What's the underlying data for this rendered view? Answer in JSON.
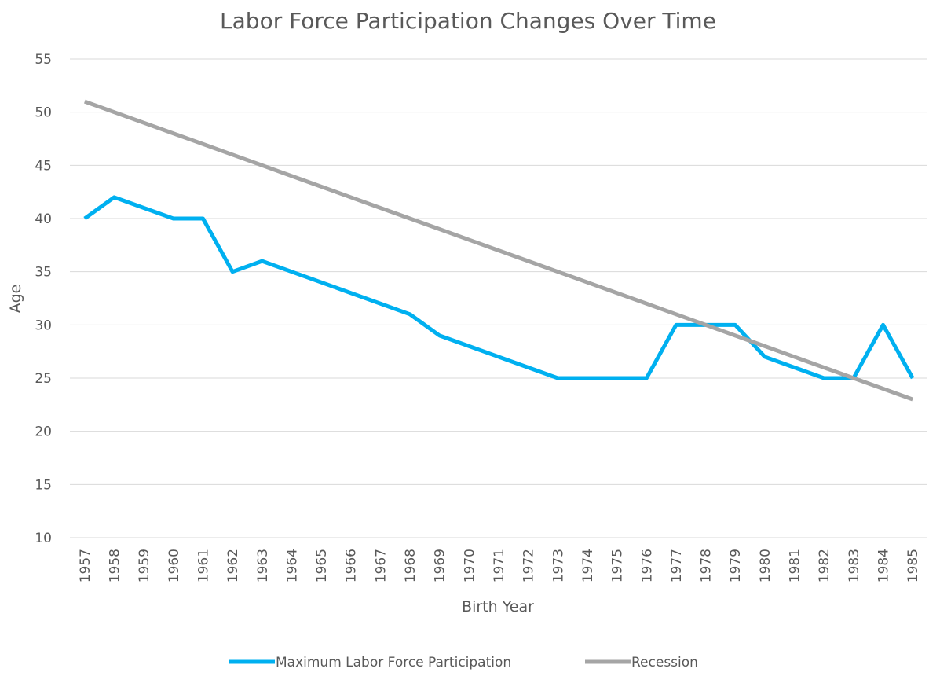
{
  "chart_data": {
    "type": "line",
    "title": "Labor Force Participation Changes Over Time",
    "x_label": "Birth Year",
    "y_label": "Age",
    "categories": [
      "1957",
      "1958",
      "1959",
      "1960",
      "1961",
      "1962",
      "1963",
      "1964",
      "1965",
      "1966",
      "1967",
      "1968",
      "1969",
      "1970",
      "1971",
      "1972",
      "1973",
      "1974",
      "1975",
      "1976",
      "1977",
      "1978",
      "1979",
      "1980",
      "1981",
      "1982",
      "1983",
      "1984",
      "1985"
    ],
    "series": [
      {
        "name": "Maximum Labor Force Participation",
        "color": "#00b0f0",
        "values": [
          40,
          42,
          41,
          40,
          40,
          35,
          36,
          35,
          34,
          33,
          32,
          31,
          29,
          28,
          27,
          26,
          25,
          25,
          25,
          25,
          30,
          30,
          30,
          27,
          26,
          25,
          25,
          30,
          25
        ]
      },
      {
        "name": "Recession",
        "color": "#a5a5a5",
        "values": [
          51,
          50,
          49,
          48,
          47,
          46,
          45,
          44,
          43,
          42,
          41,
          40,
          39,
          38,
          37,
          36,
          35,
          34,
          33,
          32,
          31,
          30,
          29,
          28,
          27,
          26,
          25,
          24,
          23
        ]
      }
    ],
    "ylim": [
      10,
      55
    ],
    "yticks": [
      10,
      15,
      20,
      25,
      30,
      35,
      40,
      45,
      50,
      55
    ],
    "grid": true
  }
}
